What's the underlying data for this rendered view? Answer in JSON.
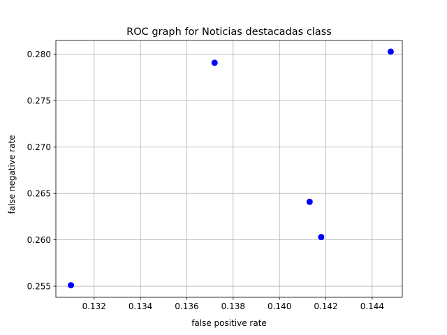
{
  "chart_data": {
    "type": "scatter",
    "title": "ROC graph for Noticias destacadas class",
    "xlabel": "false positive rate",
    "ylabel": "false negative rate",
    "xlim": [
      0.13035,
      0.1453
    ],
    "ylim": [
      0.2538,
      0.2815
    ],
    "xticks": [
      0.132,
      0.134,
      0.136,
      0.138,
      0.14,
      0.142,
      0.144
    ],
    "xtick_labels": [
      "0.132",
      "0.134",
      "0.136",
      "0.138",
      "0.140",
      "0.142",
      "0.144"
    ],
    "yticks": [
      0.255,
      0.26,
      0.265,
      0.27,
      0.275,
      0.28
    ],
    "ytick_labels": [
      "0.255",
      "0.260",
      "0.265",
      "0.270",
      "0.275",
      "0.280"
    ],
    "grid": true,
    "marker_color": "#0000ff",
    "points": [
      {
        "x": 0.131,
        "y": 0.2551
      },
      {
        "x": 0.1372,
        "y": 0.2791
      },
      {
        "x": 0.1413,
        "y": 0.2641
      },
      {
        "x": 0.1418,
        "y": 0.2603
      },
      {
        "x": 0.1448,
        "y": 0.2803
      }
    ]
  }
}
